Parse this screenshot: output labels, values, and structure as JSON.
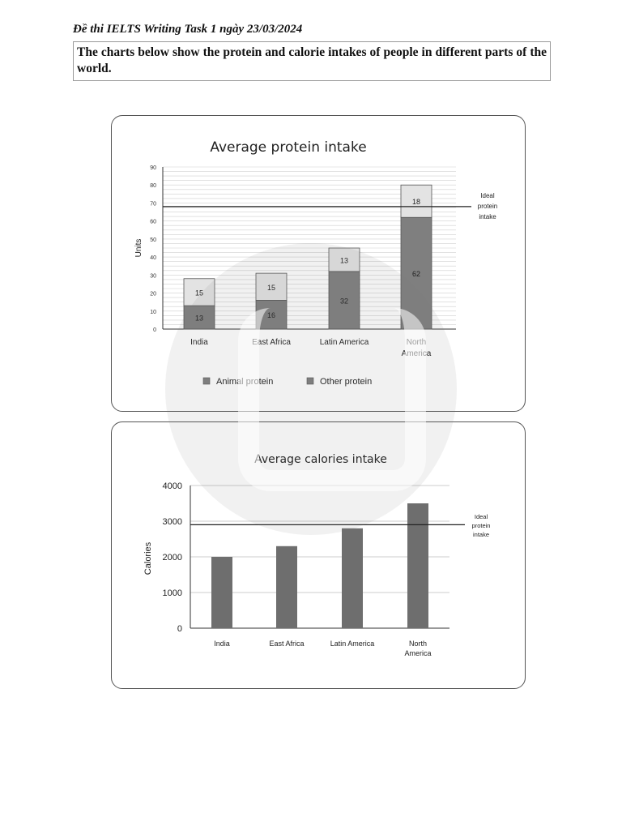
{
  "header": {
    "exam_title": "Đề thi IELTS Writing Task 1 ngày 23/03/2024",
    "prompt": "The charts below show the protein and calorie intakes of people in different parts of the world."
  },
  "colors": {
    "animal": "#7f7f7f",
    "other": "#e3e3e3",
    "bar": "#6e6e6e",
    "line": "#222222"
  },
  "chart_data": [
    {
      "type": "bar",
      "stacked": true,
      "title": "Average protein intake",
      "ylabel": "Units",
      "xlabel": "",
      "ylim": [
        0,
        90
      ],
      "yticks": [
        0,
        10,
        20,
        30,
        40,
        50,
        60,
        70,
        80,
        90
      ],
      "categories": [
        "India",
        "East Africa",
        "Latin America",
        "North America"
      ],
      "series": [
        {
          "name": "Animal protein",
          "values": [
            13,
            16,
            32,
            62
          ]
        },
        {
          "name": "Other protein",
          "values": [
            15,
            15,
            13,
            18
          ]
        }
      ],
      "reference_line": {
        "value": 68,
        "label": "Ideal protein intake"
      },
      "legend": "bottom"
    },
    {
      "type": "bar",
      "title": "Average calories intake",
      "ylabel": "Calories",
      "xlabel": "",
      "ylim": [
        0,
        4000
      ],
      "yticks": [
        0,
        1000,
        2000,
        3000,
        4000
      ],
      "categories": [
        "India",
        "East Africa",
        "Latin America",
        "North America"
      ],
      "series": [
        {
          "name": "Calories",
          "values": [
            2000,
            2300,
            2800,
            3500
          ]
        }
      ],
      "reference_line": {
        "value": 2900,
        "label": "Ideal protein intake"
      }
    }
  ]
}
